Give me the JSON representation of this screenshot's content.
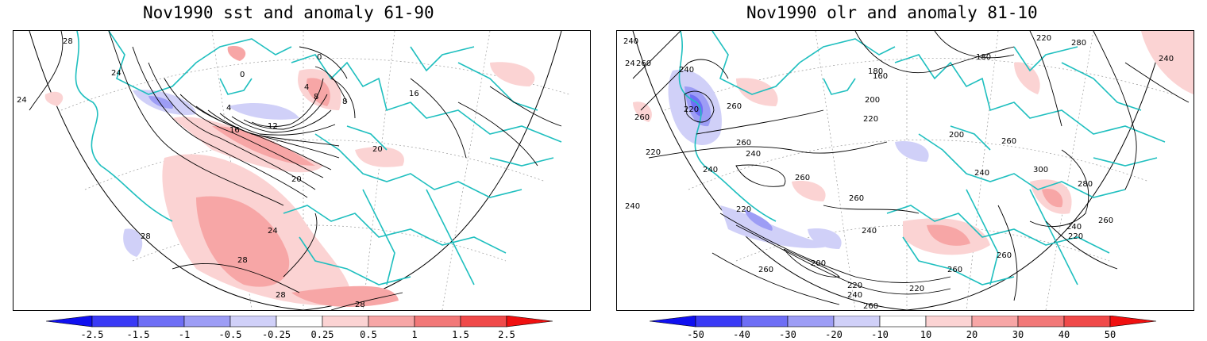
{
  "panels": [
    {
      "title": "Nov1990 sst and anomaly 61-90",
      "contour_labels": [
        "28",
        "24",
        "24",
        "0",
        "0",
        "4",
        "8",
        "4",
        "8",
        "16",
        "12",
        "20",
        "20",
        "24",
        "28",
        "28",
        "28",
        "28",
        "16"
      ],
      "colorbar": {
        "labels": [
          "-2.5",
          "-1.5",
          "-1",
          "-0.5",
          "-0.25",
          "0.25",
          "0.5",
          "1",
          "1.5",
          "2.5"
        ],
        "colors": [
          "#3a3af5",
          "#6e6ef5",
          "#9d9df5",
          "#d0d0f8",
          "#ffffff",
          "#fbd3d3",
          "#f7a6a6",
          "#f27878",
          "#f04a4a"
        ]
      }
    },
    {
      "title": "Nov1990 olr and anomaly 81-10",
      "contour_labels": [
        "240",
        "24",
        "260",
        "240",
        "220",
        "180",
        "160",
        "180",
        "220",
        "280",
        "240",
        "260",
        "260",
        "220",
        "240",
        "200",
        "220",
        "200",
        "240",
        "260",
        "260",
        "240",
        "260",
        "300",
        "280",
        "220",
        "240",
        "260",
        "260",
        "240",
        "220",
        "200",
        "220",
        "240",
        "260",
        "260",
        "260",
        "220",
        "240",
        "260"
      ],
      "colorbar": {
        "labels": [
          "-50",
          "-40",
          "-30",
          "-20",
          "-10",
          "10",
          "20",
          "30",
          "40",
          "50"
        ],
        "colors": [
          "#3a3af5",
          "#6e6ef5",
          "#9d9df5",
          "#d0d0f8",
          "#ffffff",
          "#fbd3d3",
          "#f7a6a6",
          "#f27878",
          "#f04a4a"
        ]
      }
    }
  ]
}
